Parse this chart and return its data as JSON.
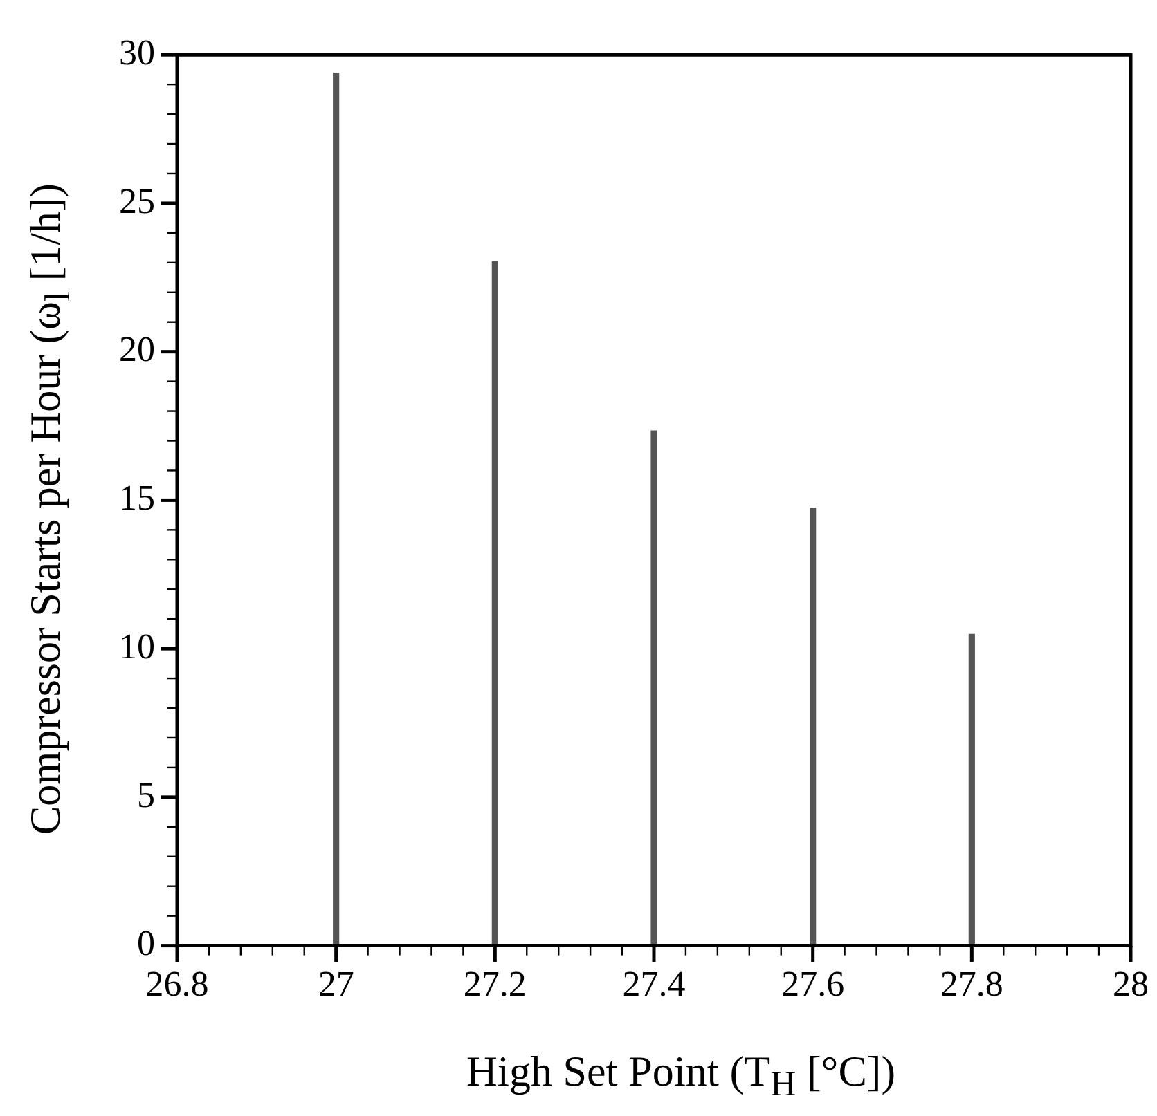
{
  "chart_data": {
    "type": "bar",
    "xlabel": "High Set Point (T$_{H}$ [°C])",
    "ylabel": "Compressor Starts per Hour (ω$_{l}$ [1/h])",
    "x": [
      27,
      27.2,
      27.4,
      27.6,
      27.8
    ],
    "values": [
      29.4,
      23.05,
      17.35,
      14.75,
      10.5
    ],
    "color": "#555555",
    "xlim": [
      26.8,
      28
    ],
    "xticks": [
      26.8,
      {
        "value": 26.84,
        "label": null
      },
      {
        "value": 26.88,
        "label": null
      },
      {
        "value": 26.92,
        "label": null
      },
      {
        "value": 26.96,
        "label": null
      },
      27,
      {
        "value": 27.04,
        "label": null
      },
      {
        "value": 27.08,
        "label": null
      },
      {
        "value": 27.12,
        "label": null
      },
      {
        "value": 27.16,
        "label": null
      },
      27.2,
      {
        "value": 27.24,
        "label": null
      },
      {
        "value": 27.28,
        "label": null
      },
      {
        "value": 27.32,
        "label": null
      },
      {
        "value": 27.36,
        "label": null
      },
      27.4,
      {
        "value": 27.44,
        "label": null
      },
      {
        "value": 27.48,
        "label": null
      },
      {
        "value": 27.52,
        "label": null
      },
      {
        "value": 27.56,
        "label": null
      },
      27.6,
      {
        "value": 27.64,
        "label": null
      },
      {
        "value": 27.68,
        "label": null
      },
      {
        "value": 27.72,
        "label": null
      },
      {
        "value": 27.76,
        "label": null
      },
      27.8,
      {
        "value": 27.84,
        "label": null
      },
      {
        "value": 27.88,
        "label": null
      },
      {
        "value": 27.92,
        "label": null
      },
      {
        "value": 27.96,
        "label": null
      },
      28
    ],
    "ylim": [
      0,
      30
    ],
    "yticks": [
      0,
      {
        "value": 1,
        "label": null
      },
      {
        "value": 2,
        "label": null
      },
      {
        "value": 3,
        "label": null
      },
      {
        "value": 4,
        "label": null
      },
      5,
      {
        "value": 6,
        "label": null
      },
      {
        "value": 7,
        "label": null
      },
      {
        "value": 8,
        "label": null
      },
      {
        "value": 9,
        "label": null
      },
      10,
      {
        "value": 11,
        "label": null
      },
      {
        "value": 12,
        "label": null
      },
      {
        "value": 13,
        "label": null
      },
      {
        "value": 14,
        "label": null
      },
      15,
      {
        "value": 16,
        "label": null
      },
      {
        "value": 17,
        "label": null
      },
      {
        "value": 18,
        "label": null
      },
      {
        "value": 19,
        "label": null
      },
      20,
      {
        "value": 21,
        "label": null
      },
      {
        "value": 22,
        "label": null
      },
      {
        "value": 23,
        "label": null
      },
      {
        "value": 24,
        "label": null
      },
      25,
      {
        "value": 26,
        "label": null
      },
      {
        "value": 27,
        "label": null
      },
      {
        "value": 28,
        "label": null
      },
      {
        "value": 29,
        "label": null
      },
      30
    ]
  }
}
